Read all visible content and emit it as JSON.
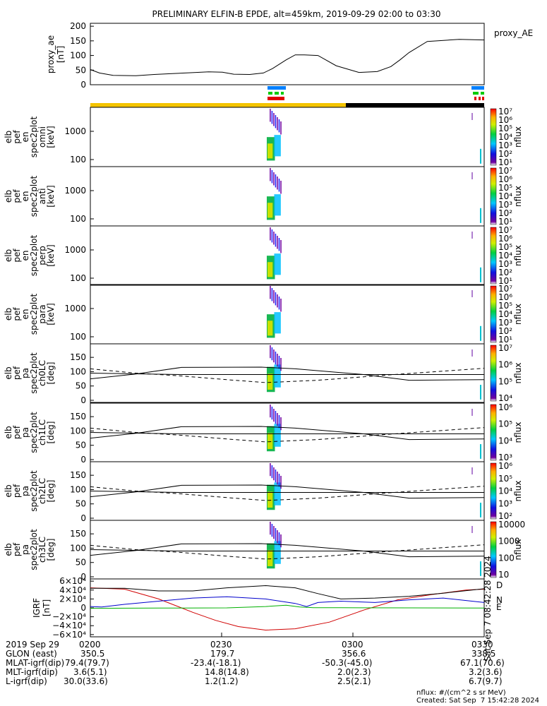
{
  "title": "PRELIMINARY ELFIN-B EPDE, alt=459km, 2019-09-29 02:00 to 03:30",
  "colors": {
    "sci_zone": "#f4c400",
    "fast_bar": "#0080ff",
    "green": "#00cc00",
    "red": "#e00000",
    "black": "#000000",
    "grf_d": "#d00000",
    "grf_n": "#0000cc",
    "grf_e": "#00b000"
  },
  "panels": {
    "proxy_ae": {
      "ylabel": [
        "proxy_ae",
        "[nT]"
      ],
      "legend": "proxy_AE",
      "yticks": [
        "200",
        "150",
        "100",
        "50",
        "0"
      ]
    },
    "spec_labels": [
      [
        "elb",
        "pef",
        "en",
        "spec2plot",
        "omni",
        "[keV]"
      ],
      [
        "elb",
        "pef",
        "en",
        "spec2plot",
        "anti",
        "[keV]"
      ],
      [
        "elb",
        "pef",
        "en",
        "spec2plot",
        "perp",
        "[keV]"
      ],
      [
        "elb",
        "pef",
        "en",
        "spec2plot",
        "para",
        "[keV]"
      ]
    ],
    "energy_ticks": [
      "1000",
      "100"
    ],
    "pa_labels": [
      [
        "elb",
        "pef",
        "pa",
        "spec2plot",
        "ch0LC",
        "[deg]"
      ],
      [
        "elb",
        "pef",
        "pa",
        "spec2plot",
        "ch1LC",
        "[deg]"
      ],
      [
        "elb",
        "pef",
        "pa",
        "spec2plot",
        "ch2LC",
        "[deg]"
      ],
      [
        "elb",
        "pef",
        "pa",
        "spec2plot",
        "ch3LC",
        "[deg]"
      ]
    ],
    "pa_ticks": [
      "150",
      "100",
      "50",
      "0"
    ],
    "colorbar_label": "nflux",
    "colorbar_ticks": [
      [
        "10⁷",
        "10⁶",
        "10⁵",
        "10⁴",
        "10³",
        "10²",
        "10¹"
      ],
      [
        "10⁷",
        "10⁶",
        "10⁵",
        "10⁴",
        "10³",
        "10²",
        "10¹"
      ],
      [
        "10⁷",
        "10⁶",
        "10⁵",
        "10⁴",
        "10³",
        "10²",
        "10¹"
      ],
      [
        "10⁷",
        "10⁶",
        "10⁵",
        "10⁴",
        "10³",
        "10²",
        "10¹"
      ],
      [
        "10⁷",
        "10⁶",
        "10⁵",
        "10⁴"
      ],
      [
        "10⁶",
        "10⁵",
        "10⁴",
        "10³"
      ],
      [
        "10⁶",
        "10⁵",
        "10⁴",
        "10³",
        "10²"
      ],
      [
        "10000",
        "1000",
        "100",
        "10"
      ]
    ],
    "grf": {
      "ylabel": [
        "IGRF",
        "[nT]"
      ],
      "yticks": [
        "6×10⁴",
        "4×10⁴",
        "2×10⁴",
        "0",
        "−2×10⁴",
        "−4×10⁴",
        "−6×10⁴"
      ],
      "legend": [
        "D",
        "N",
        "E"
      ],
      "stamp": "Sat Sep  7 08:42:28 2024"
    }
  },
  "chart_data": [
    {
      "type": "line",
      "name": "proxy_AE",
      "x_minutes": [
        0,
        4,
        10,
        20,
        28,
        36,
        44,
        52,
        58,
        63,
        70,
        76,
        80,
        86,
        90,
        94,
        100,
        108,
        118,
        126,
        132,
        136,
        140,
        148,
        162,
        173
      ],
      "y": [
        52,
        40,
        32,
        31,
        35,
        38,
        41,
        44,
        43,
        36,
        35,
        40,
        55,
        85,
        102,
        102,
        100,
        65,
        42,
        45,
        62,
        85,
        110,
        148,
        155,
        153
      ],
      "ylim": [
        0,
        210
      ]
    },
    {
      "type": "line",
      "name": "IGRF",
      "ylim": [
        -65000,
        65000
      ],
      "series": [
        {
          "name": "D",
          "x_minutes": [
            0,
            15,
            30,
            45,
            55,
            65,
            77,
            90,
            105,
            120,
            135,
            150,
            165,
            173
          ],
          "y": [
            45000,
            42000,
            20000,
            -10000,
            -28000,
            -42000,
            -50000,
            -47000,
            -32000,
            -5000,
            18000,
            30000,
            40000,
            42000
          ]
        },
        {
          "name": "N",
          "x_minutes": [
            0,
            5,
            15,
            30,
            45,
            60,
            77,
            90,
            95,
            100,
            110,
            125,
            140,
            155,
            173
          ],
          "y": [
            3000,
            2000,
            8000,
            15000,
            22000,
            25000,
            20000,
            10000,
            3000,
            12000,
            15000,
            12000,
            18000,
            22000,
            12000
          ]
        },
        {
          "name": "E",
          "x_minutes": [
            0,
            30,
            60,
            77,
            86,
            92,
            98,
            110,
            140,
            173
          ],
          "y": [
            -1000,
            -500,
            0,
            3000,
            6000,
            2000,
            500,
            300,
            0,
            -500
          ]
        },
        {
          "name": "total",
          "x_minutes": [
            0,
            15,
            30,
            45,
            60,
            77,
            90,
            100,
            110,
            125,
            140,
            155,
            173
          ],
          "y": [
            44000,
            44000,
            38000,
            38000,
            45000,
            50000,
            45000,
            32000,
            20000,
            22000,
            26000,
            33000,
            43000
          ]
        }
      ]
    }
  ],
  "footer": {
    "rows": [
      [
        "2019 Sep 29",
        "0200",
        "0230",
        "0300",
        "0330"
      ],
      [
        "GLON (east)",
        "350.5",
        "179.7",
        "356.6",
        "338.5"
      ],
      [
        "MLAT-igrf(dip)",
        "79.4(79.7)",
        "-23.4(-18.1)",
        "-50.3(-45.0)",
        "67.1(70.6)"
      ],
      [
        "MLT-igrf(dip)",
        "3.6(5.1)",
        "14.8(14.8)",
        "2.0(2.3)",
        "3.2(3.6)"
      ],
      [
        "L-igrf(dip)",
        "30.0(33.6)",
        "1.2(1.2)",
        "2.5(2.1)",
        "6.7(9.7)"
      ]
    ],
    "units_note": "nflux: #/(cm^2 s sr MeV)",
    "created": "Created: Sat Sep  7 15:42:28 2024"
  }
}
